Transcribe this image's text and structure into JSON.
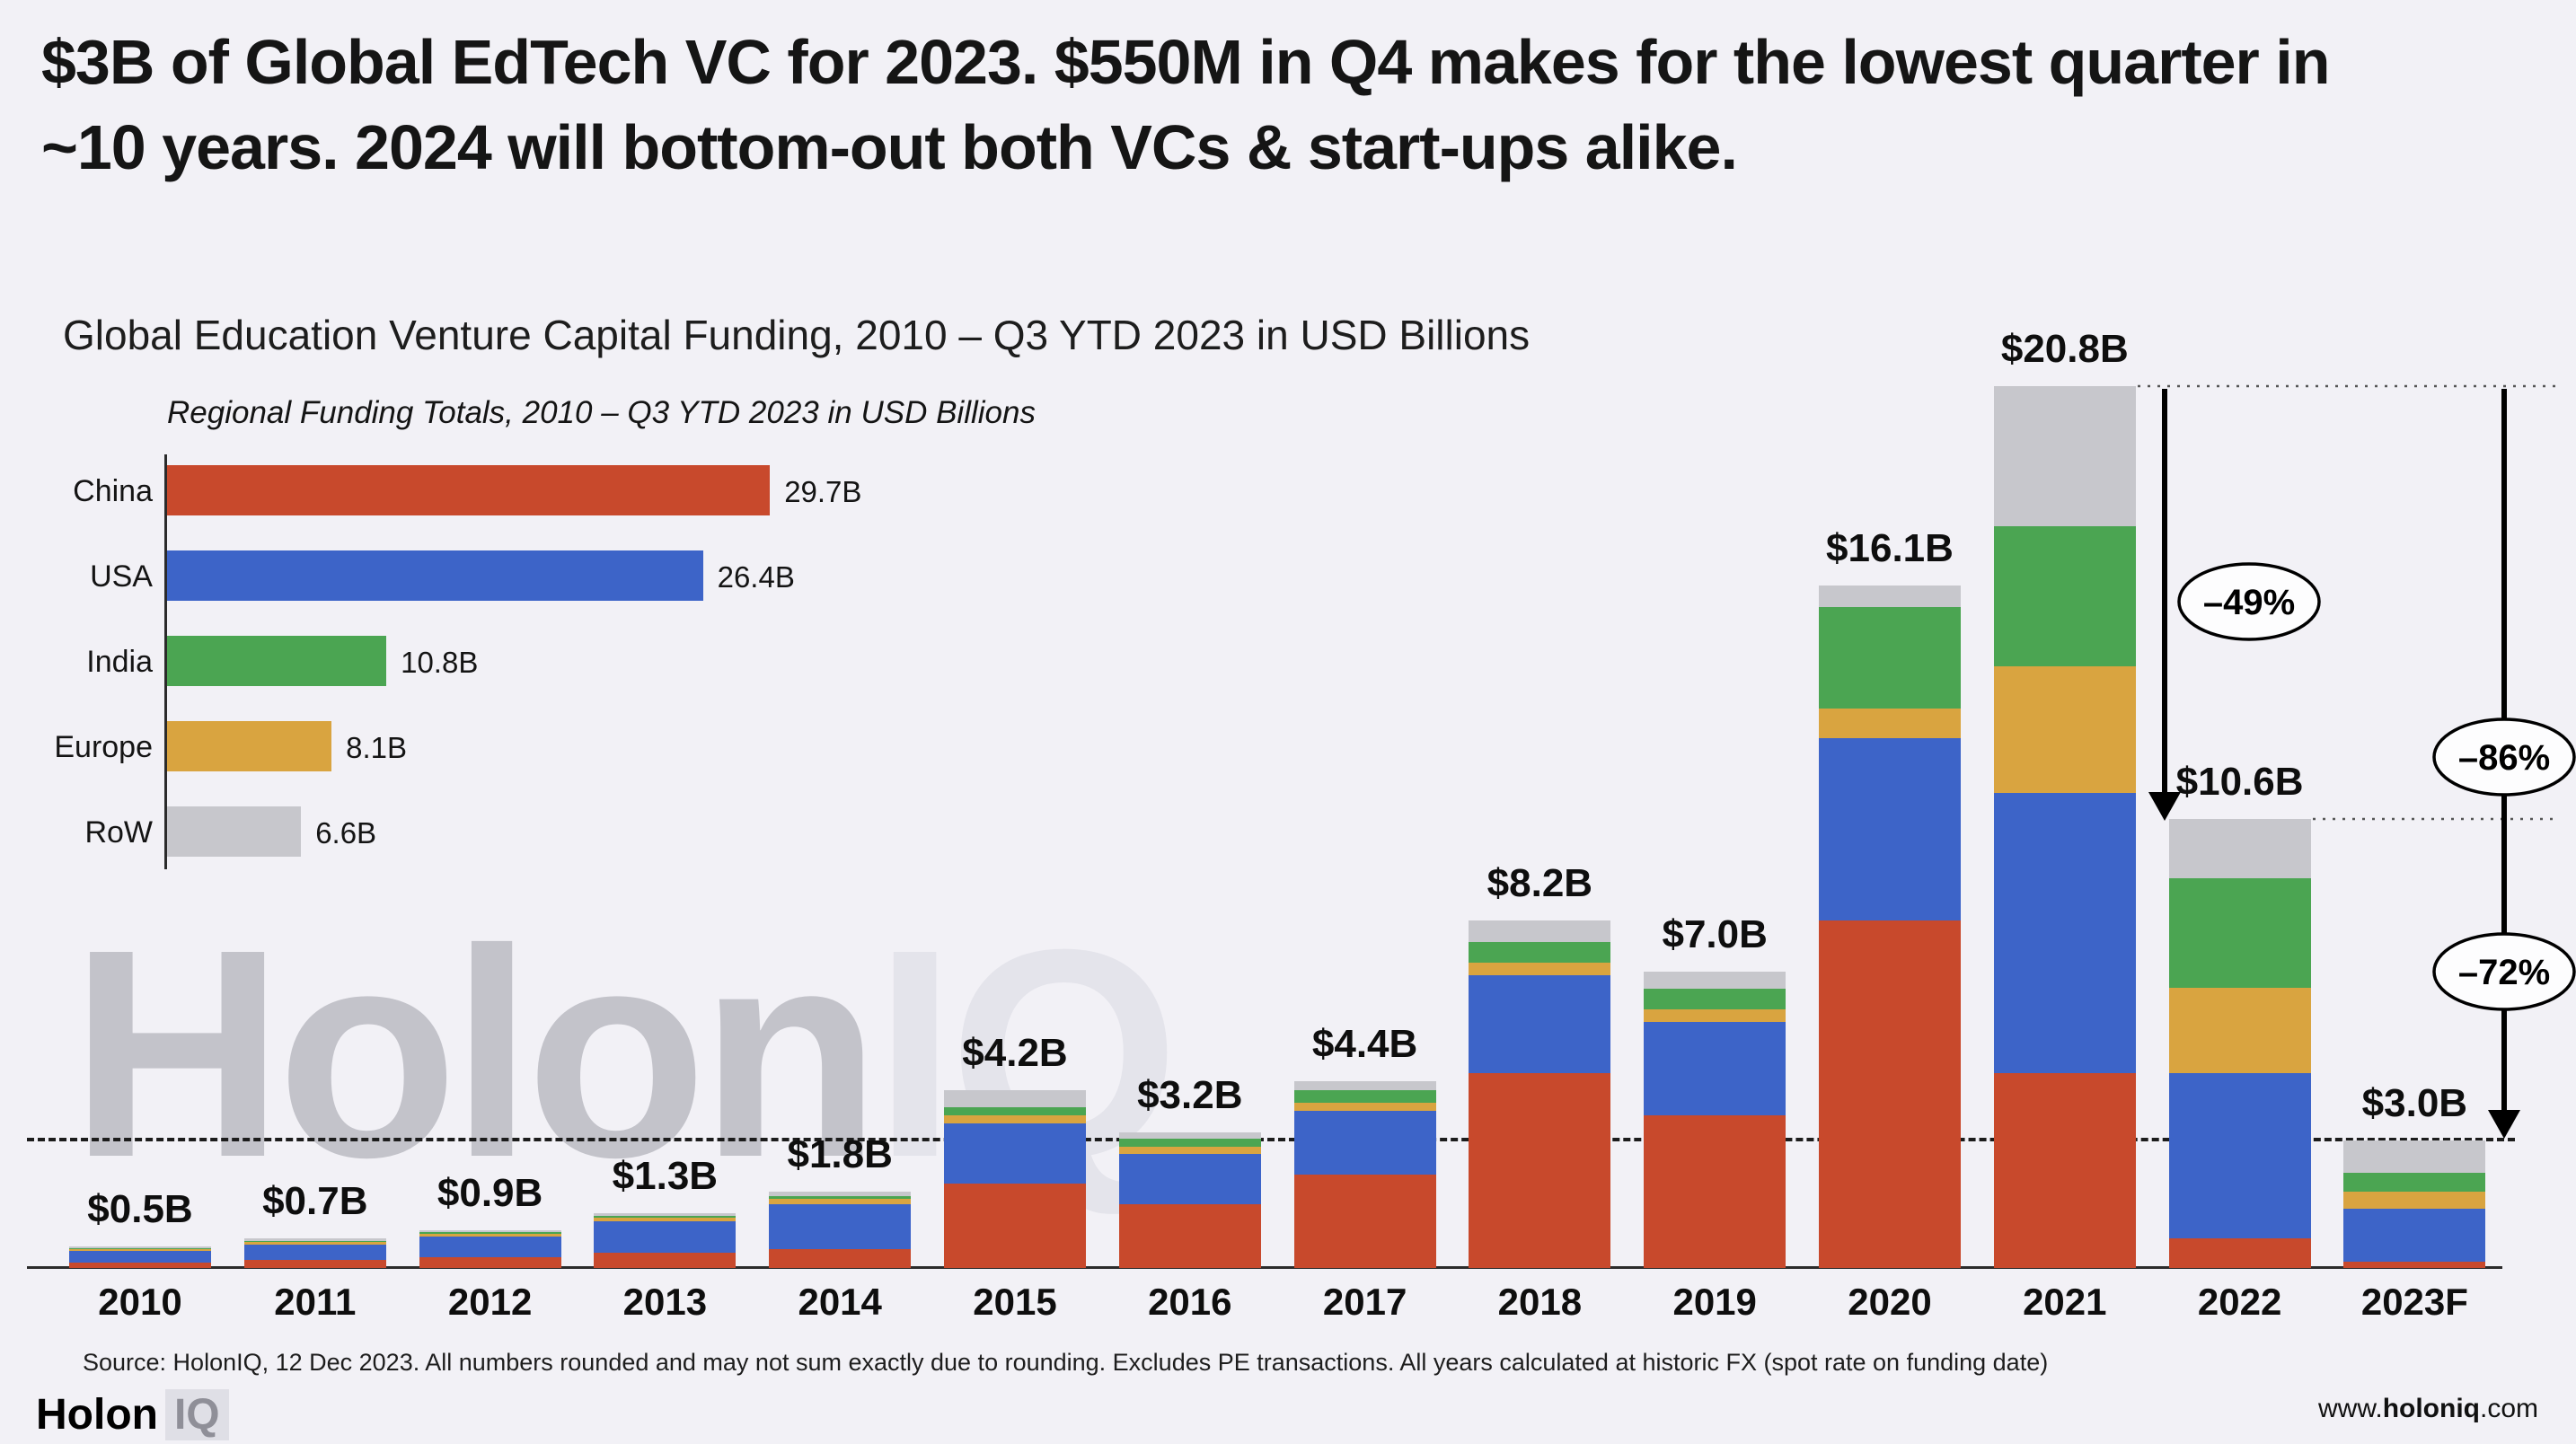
{
  "page": {
    "headline": "$3B of Global EdTech VC for 2023. $550M in Q4 makes for the lowest quarter in ~10 years. 2024 will bottom-out both VCs & start-ups alike.",
    "chart_title": "Global Education Venture Capital Funding, 2010 – Q3 YTD 2023 in USD Billions",
    "watermark": {
      "part1": "Holon",
      "part2": "IQ"
    },
    "source_note": "Source: HolonIQ, 12 Dec 2023. All numbers rounded and may not sum exactly due to rounding. Excludes PE transactions. All years calculated at historic FX (spot rate on funding date)",
    "footer": {
      "logo_holon": "Holon",
      "logo_iq": "IQ",
      "website_prefix": "www.",
      "website_bold": "holoniq",
      "website_suffix": ".com"
    }
  },
  "colors": {
    "background": "#F2F1F6",
    "china_red": "#C8492C",
    "usa_blue": "#3D64C8",
    "india_green": "#4BA552",
    "europe_gold": "#D9A440",
    "row_gray": "#C7C7CC",
    "annotation_black": "#000000"
  },
  "chart_data": [
    {
      "type": "bar",
      "stacked": true,
      "title": "Global Education Venture Capital Funding, 2010 – Q3 YTD 2023 in USD Billions",
      "unit": "USD Billions",
      "legend_position": "none",
      "grid": false,
      "ylim": [
        0,
        22
      ],
      "categories": [
        "2010",
        "2011",
        "2012",
        "2013",
        "2014",
        "2015",
        "2016",
        "2017",
        "2018",
        "2019",
        "2020",
        "2021",
        "2022",
        "2023F"
      ],
      "totals": [
        0.5,
        0.7,
        0.9,
        1.3,
        1.8,
        4.2,
        3.2,
        4.4,
        8.2,
        7.0,
        16.1,
        20.8,
        10.6,
        3.0
      ],
      "totals_labels": [
        "$0.5B",
        "$0.7B",
        "$0.9B",
        "$1.3B",
        "$1.8B",
        "$4.2B",
        "$3.2B",
        "$4.4B",
        "$8.2B",
        "$7.0B",
        "$16.1B",
        "$20.8B",
        "$10.6B",
        "$3.0B"
      ],
      "series": [
        {
          "name": "China",
          "color": "#C8492C",
          "values": [
            0.12,
            0.18,
            0.25,
            0.35,
            0.45,
            2.0,
            1.5,
            2.2,
            4.6,
            3.6,
            8.2,
            4.6,
            0.7,
            0.15
          ]
        },
        {
          "name": "USA",
          "color": "#3D64C8",
          "values": [
            0.28,
            0.38,
            0.48,
            0.75,
            1.05,
            1.4,
            1.2,
            1.5,
            2.3,
            2.2,
            4.3,
            6.6,
            3.9,
            1.25
          ]
        },
        {
          "name": "Europe",
          "color": "#D9A440",
          "values": [
            0.04,
            0.05,
            0.07,
            0.08,
            0.12,
            0.2,
            0.15,
            0.2,
            0.3,
            0.3,
            0.7,
            3.0,
            2.0,
            0.4
          ]
        },
        {
          "name": "India",
          "color": "#4BA552",
          "values": [
            0.02,
            0.03,
            0.04,
            0.05,
            0.08,
            0.2,
            0.2,
            0.3,
            0.5,
            0.5,
            2.4,
            3.3,
            2.6,
            0.45
          ]
        },
        {
          "name": "RoW",
          "color": "#C7C7CC",
          "values": [
            0.04,
            0.06,
            0.06,
            0.07,
            0.1,
            0.4,
            0.15,
            0.2,
            0.5,
            0.4,
            0.5,
            3.3,
            1.4,
            0.75
          ]
        }
      ],
      "annotations": [
        {
          "label": "–49%",
          "from": "2021",
          "to": "2022",
          "from_value": 20.8,
          "to_value": 10.6
        },
        {
          "label": "–86%",
          "from": "2021",
          "to": "2023F",
          "from_value": 20.8,
          "to_value": 3.0
        },
        {
          "label": "–72%",
          "from": "2022",
          "to": "2023F",
          "from_value": 10.6,
          "to_value": 3.0
        }
      ],
      "reference_line_value": 3.0
    },
    {
      "type": "bar",
      "orientation": "horizontal",
      "title": "Regional Funding Totals, 2010 – Q3 YTD 2023 in USD Billions",
      "grid": false,
      "xlim": [
        0,
        32
      ],
      "categories": [
        "China",
        "USA",
        "India",
        "Europe",
        "RoW"
      ],
      "values": [
        29.7,
        26.4,
        10.8,
        8.1,
        6.6
      ],
      "value_labels": [
        "29.7B",
        "26.4B",
        "10.8B",
        "8.1B",
        "6.6B"
      ],
      "colors": [
        "#C8492C",
        "#3D64C8",
        "#4BA552",
        "#D9A440",
        "#C7C7CC"
      ]
    }
  ]
}
